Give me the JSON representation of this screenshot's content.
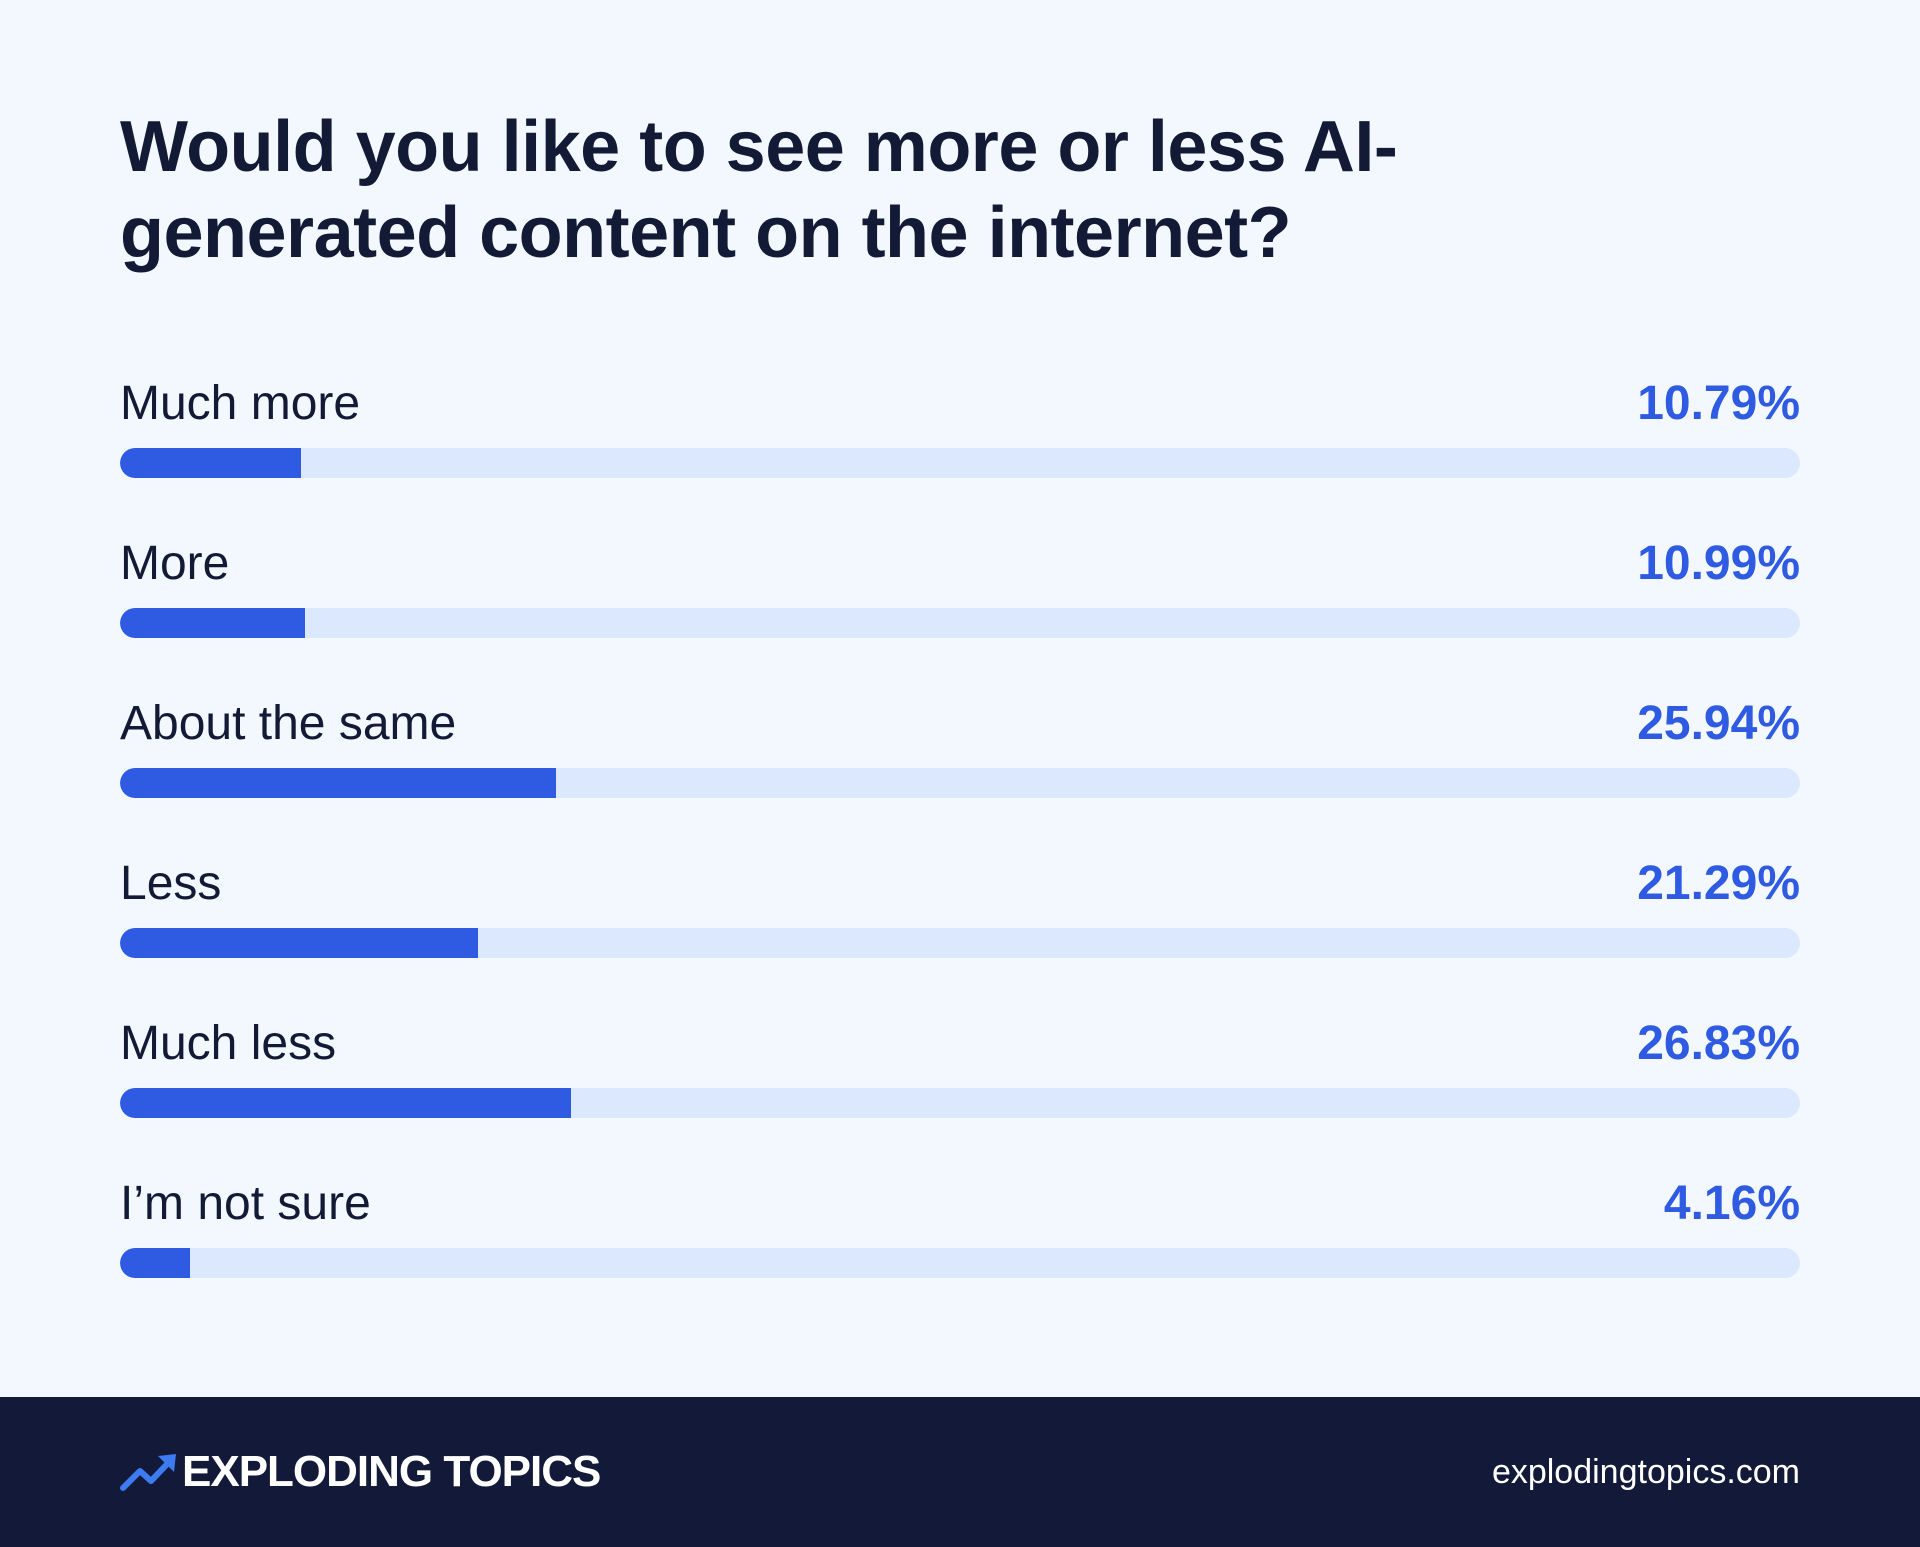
{
  "colors": {
    "background": "#f3f8ff",
    "accent": "#2f5be3",
    "track": "#dce8fd",
    "text": "#131a36",
    "footer": "#131938"
  },
  "chart_data": {
    "type": "bar",
    "orientation": "horizontal",
    "title": "Would you like to see more or less AI-generated content on the internet?",
    "categories": [
      "Much more",
      "More",
      "About the same",
      "Less",
      "Much less",
      "I’m not sure"
    ],
    "values": [
      10.79,
      10.99,
      25.94,
      21.29,
      26.83,
      4.16
    ],
    "value_labels": [
      "10.79%",
      "10.99%",
      "25.94%",
      "21.29%",
      "26.83%",
      "4.16%"
    ],
    "xlim": [
      0,
      100
    ],
    "grid": false,
    "legend": "none"
  },
  "footer": {
    "brand_icon": "trend-arrow-icon",
    "brand": "EXPLODING TOPICS",
    "site": "explodingtopics.com"
  }
}
